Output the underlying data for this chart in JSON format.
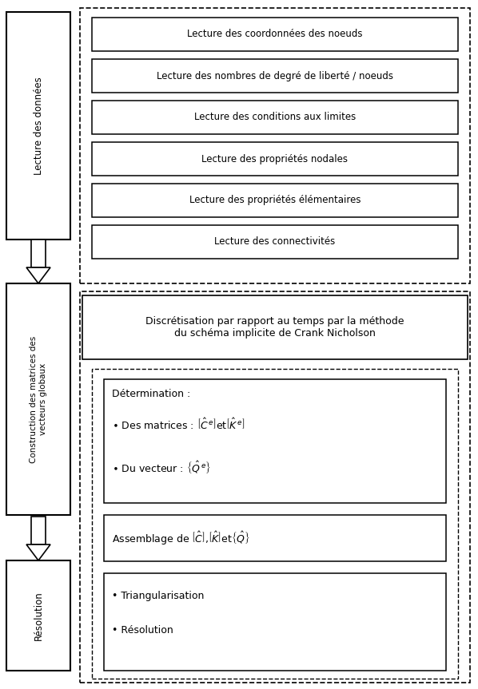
{
  "bg_color": "#ffffff",
  "reading_boxes": [
    "Lecture des coordonnées des noeuds",
    "Lecture des nombres de degré de liberté / noeuds",
    "Lecture des conditions aux limites",
    "Lecture des propriétés nodales",
    "Lecture des propriétés élémentaires",
    "Lecture des connectivités"
  ],
  "discretisation_text": "Discrétisation par rapport au temps par la méthode\ndu schéma implicite de Crank Nicholson",
  "left_label_1": "Lecture des données",
  "left_label_2": "Construction des matrices des\nvecteurs globaux",
  "left_label_3": "Résolution",
  "det_line1": "Détermination :",
  "det_line2": "Des matrices : ",
  "det_line3": "Du vecteur : ",
  "ass_text": "Assemblage de ",
  "tri_text": "Triangularisation",
  "res_text": "Résolution"
}
